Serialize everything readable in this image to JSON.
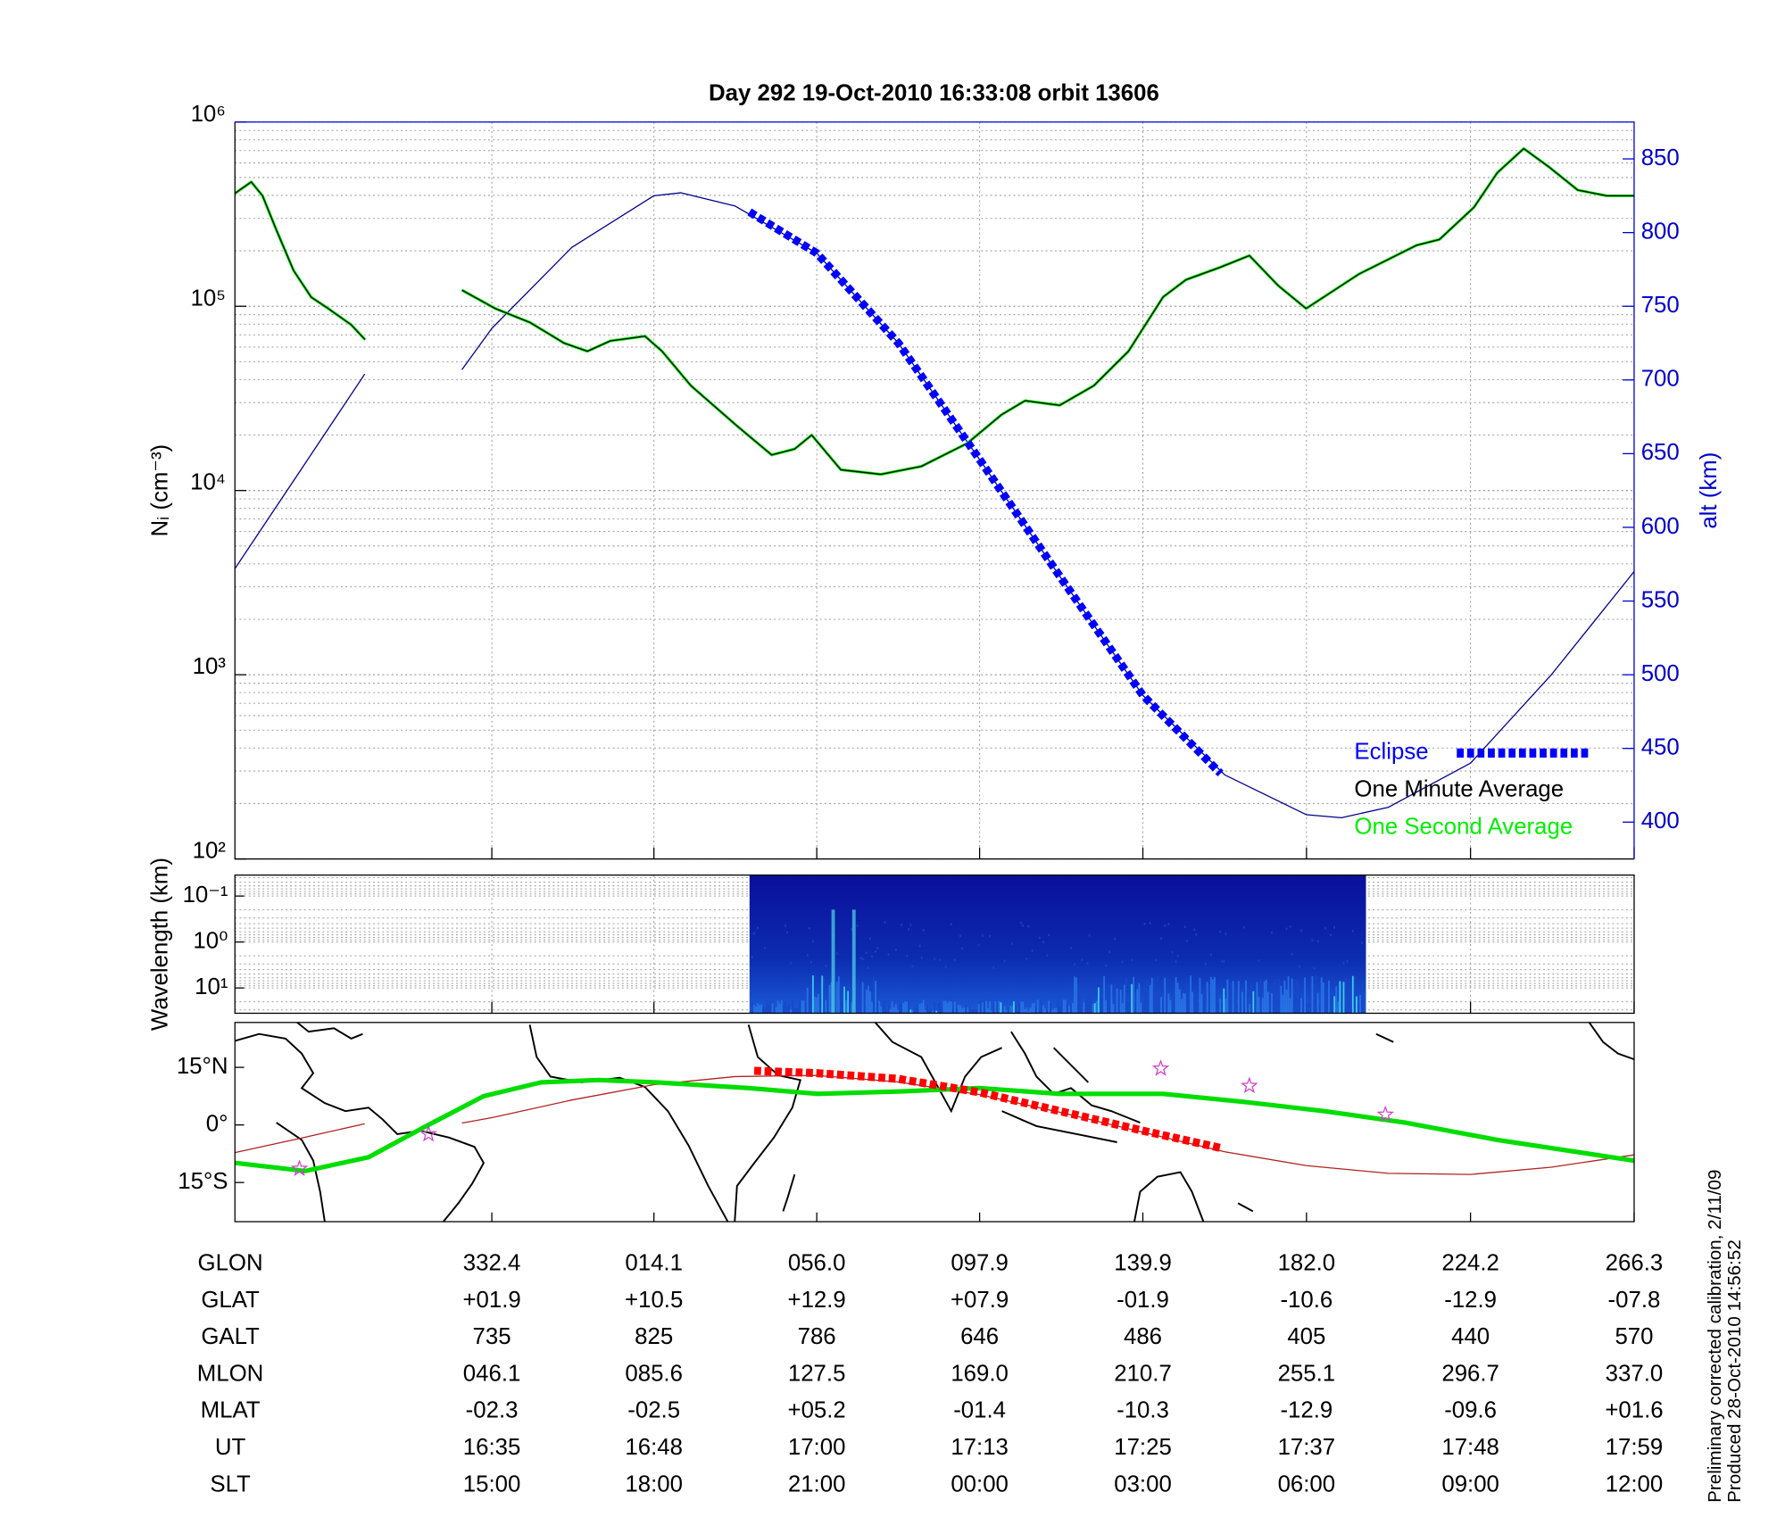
{
  "chart_data": [
    {
      "type": "line",
      "title": "Day 292  19-Oct-2010 16:33:08   orbit 13606",
      "ylabel": "Nᵢ (cm⁻³)",
      "y2label": "alt (km)",
      "xlim": [
        266.3,
        626.3
      ],
      "xticks": [
        332.4,
        374.1,
        416.0,
        457.9,
        499.9,
        542.0,
        584.2,
        626.3
      ],
      "yscale": "log",
      "ylim": [
        100,
        1000000
      ],
      "yticks": [
        {
          "value": 100,
          "label": "10²"
        },
        {
          "value": 1000,
          "label": "10³"
        },
        {
          "value": 10000,
          "label": "10⁴"
        },
        {
          "value": 100000,
          "label": "10⁵"
        },
        {
          "value": 1000000,
          "label": "10⁶"
        }
      ],
      "y2lim": [
        375,
        875
      ],
      "y2ticks": [
        400,
        450,
        500,
        550,
        600,
        650,
        700,
        750,
        800,
        850
      ],
      "y2color": "#0000cc",
      "grid": true,
      "legend": "lower right",
      "series": [
        {
          "color": "#00008b",
          "axis": "y2",
          "x": [
            266.3,
            283.0,
            299.7,
            312.2,
            324.7,
            332.4,
            353.0,
            374.1,
            381.0,
            395.0,
            416.0,
            437.0,
            457.9,
            479.0,
            499.9,
            521.0,
            542.0,
            551.0,
            563.0,
            584.2,
            605.0,
            626.3
          ],
          "values": [
            572,
            638,
            704,
            null,
            707,
            735,
            790,
            825,
            827,
            818,
            786,
            725,
            646,
            565,
            486,
            432,
            405,
            403,
            410,
            440,
            500,
            570
          ]
        },
        {
          "name": "Eclipse",
          "color": "#0000ff",
          "axis": "y2",
          "line_style": "dashed",
          "x": [
            398.7,
            416.0,
            437.0,
            457.9,
            479.0,
            499.9,
            519.9
          ],
          "values": [
            814,
            786,
            725,
            646,
            565,
            486,
            433
          ]
        },
        {
          "name": "One Minute Average",
          "color": "#000000",
          "x": [
            266.3,
            270.5,
            273.4,
            277.0,
            281.4,
            285.9,
            290.3,
            296.2,
            299.8,
            312.2,
            324.7,
            333.3,
            342.2,
            351.0,
            357.0,
            362.9,
            371.8,
            376.2,
            383.6,
            395.5,
            404.4,
            410.3,
            414.7,
            417.7,
            422.2,
            432.5,
            442.9,
            454.7,
            463.6,
            469.6,
            478.5,
            487.3,
            496.2,
            505.1,
            511.0,
            519.9,
            527.3,
            534.7,
            541.9,
            555.5,
            570.3,
            576.2,
            585.1,
            591.1,
            597.9,
            604.4,
            611.8,
            619.2,
            626.3
          ],
          "values": [
            410000,
            473000,
            398000,
            258500,
            156300,
            112200,
            97200,
            79400,
            65900,
            null,
            122400,
            97200,
            81700,
            63100,
            57000,
            64900,
            68800,
            57000,
            37100,
            22400,
            15600,
            16800,
            20000,
            16800,
            12960,
            12240,
            13520,
            18030,
            25850,
            30720,
            29000,
            37100,
            57000,
            112200,
            139300,
            163100,
            188400,
            129600,
            97200,
            149600,
            214300,
            230400,
            344700,
            530900,
            717800,
            570000,
            427300,
            398000,
            398000
          ]
        },
        {
          "name": "One Second Average",
          "color": "#00ee00",
          "x": [
            266.3,
            270.5,
            273.4,
            277.0,
            281.4,
            285.9,
            290.3,
            296.2,
            299.8,
            312.2,
            324.7,
            333.3,
            342.2,
            351.0,
            357.0,
            362.9,
            371.8,
            376.2,
            383.6,
            395.5,
            404.4,
            410.3,
            414.7,
            417.7,
            422.2,
            432.5,
            442.9,
            454.7,
            463.6,
            469.6,
            478.5,
            487.3,
            496.2,
            505.1,
            511.0,
            519.9,
            527.3,
            534.7,
            541.9,
            555.5,
            570.3,
            576.2,
            585.1,
            591.1,
            597.9,
            604.4,
            611.8,
            619.2,
            626.3
          ],
          "values": [
            410000,
            473000,
            398000,
            258500,
            156300,
            112200,
            97200,
            79400,
            65900,
            null,
            122400,
            97200,
            81700,
            63100,
            57000,
            64900,
            68800,
            57000,
            37100,
            22400,
            15600,
            16800,
            20000,
            16800,
            12960,
            12240,
            13520,
            18030,
            25850,
            30720,
            29000,
            37100,
            57000,
            112200,
            139300,
            163100,
            188400,
            129600,
            97200,
            149600,
            214300,
            230400,
            344700,
            530900,
            717800,
            570000,
            427300,
            398000,
            398000
          ]
        }
      ]
    },
    {
      "type": "spectrogram",
      "ylabel": "Wavelength (km)",
      "xlim": [
        266.3,
        626.3
      ],
      "xticks": [
        332.4,
        374.1,
        416.0,
        457.9,
        499.9,
        542.0,
        584.2,
        626.3
      ],
      "yscale": "log",
      "yinvert": true,
      "ylim": [
        0.035,
        35.5
      ],
      "yticks": [
        {
          "value": 0.1,
          "label": "10⁻¹"
        },
        {
          "value": 1,
          "label": "10⁰"
        },
        {
          "value": 10,
          "label": "10¹"
        }
      ],
      "grid": true,
      "x": [
        398.7,
        557.3
      ]
    },
    {
      "type": "map",
      "xlim": [
        266.3,
        626.3
      ],
      "xticks": [
        332.4,
        374.1,
        416.0,
        457.9,
        499.9,
        542.0,
        584.2,
        626.3
      ],
      "ylim": [
        -25.2,
        26.7
      ],
      "yticks": [
        {
          "value": 15,
          "label": "15°N"
        },
        {
          "value": 0,
          "label": "0°"
        },
        {
          "value": -15,
          "label": "15°S"
        }
      ],
      "series": [
        {
          "type": "line",
          "color": "#b22222",
          "x": [
            266.3,
            283.0,
            299.7,
            312.2,
            324.7,
            332.4,
            353.0,
            374.1,
            395.0,
            416.0,
            437.0,
            457.9,
            479.0,
            499.9,
            521.0,
            542.0,
            563.0,
            584.2,
            605.0,
            626.3
          ],
          "values": [
            -7.2,
            -3.5,
            0.3,
            null,
            0.5,
            1.9,
            6.5,
            10.5,
            12.6,
            12.9,
            11.2,
            7.9,
            3.2,
            -1.9,
            -7.0,
            -10.6,
            -12.6,
            -12.9,
            -11.0,
            -7.8
          ]
        },
        {
          "type": "line",
          "color": "#00dd00",
          "x": [
            266.3,
            284.4,
            300.7,
            315.5,
            330.3,
            345.1,
            359.9,
            374.7,
            398.4,
            416.2,
            437.0,
            457.7,
            478.5,
            505.1,
            525.9,
            546.6,
            567.4,
            591.1,
            626.3
          ],
          "values": [
            -9.9,
            -12.0,
            -8.4,
            -0.3,
            7.5,
            11.1,
            11.7,
            11.1,
            9.6,
            8.1,
            8.7,
            9.6,
            8.1,
            8.1,
            6.0,
            3.6,
            0.6,
            -3.9,
            -9.3
          ]
        },
        {
          "type": "line",
          "color": "#ff0000",
          "line_style": "dashed",
          "x": [
            399.9,
            416.0,
            437.0,
            457.9,
            479.0,
            499.9,
            519.9
          ],
          "values": [
            14.1,
            13.5,
            12.0,
            8.5,
            3.5,
            -1.5,
            -6.0
          ]
        },
        {
          "type": "scatter",
          "color": "#cc44cc",
          "x": [
            282.9,
            316.1,
            504.5,
            527.3,
            562.3
          ],
          "values": [
            -11.4,
            -2.4,
            14.7,
            10.2,
            2.7
          ]
        }
      ]
    }
  ],
  "table": {
    "rows": [
      {
        "label": "GLON",
        "values": [
          "332.4",
          "014.1",
          "056.0",
          "097.9",
          "139.9",
          "182.0",
          "224.2",
          "266.3"
        ]
      },
      {
        "label": "GLAT",
        "values": [
          "+01.9",
          "+10.5",
          "+12.9",
          "+07.9",
          "-01.9",
          "-10.6",
          "-12.9",
          "-07.8"
        ]
      },
      {
        "label": "GALT",
        "values": [
          "735",
          "825",
          "786",
          "646",
          "486",
          "405",
          "440",
          "570"
        ]
      },
      {
        "label": "MLON",
        "values": [
          "046.1",
          "085.6",
          "127.5",
          "169.0",
          "210.7",
          "255.1",
          "296.7",
          "337.0"
        ]
      },
      {
        "label": "MLAT",
        "values": [
          "-02.3",
          "-02.5",
          "+05.2",
          "-01.4",
          "-10.3",
          "-12.9",
          "-09.6",
          "+01.6"
        ]
      },
      {
        "label": "UT",
        "values": [
          "16:35",
          "16:48",
          "17:00",
          "17:13",
          "17:25",
          "17:37",
          "17:48",
          "17:59"
        ]
      },
      {
        "label": "SLT",
        "values": [
          "15:00",
          "18:00",
          "21:00",
          "00:00",
          "03:00",
          "06:00",
          "09:00",
          "12:00"
        ]
      }
    ]
  },
  "notes": [
    "Preliminary corrected calibration, 2/11/09",
    "Produced 28-Oct-2010 14:56:52"
  ]
}
